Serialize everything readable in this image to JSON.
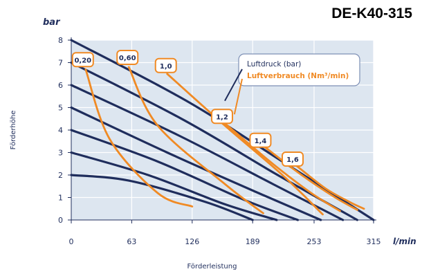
{
  "product_code": "DE-K40-315",
  "chart_data": {
    "type": "line",
    "y_unit": "bar",
    "x_unit": "l/min",
    "ylabel": "Förderhöhe",
    "xlabel": "Förderleistung",
    "xticks": [
      "0",
      "63",
      "126",
      "189",
      "253",
      "315"
    ],
    "yticks": [
      "0",
      "1",
      "2",
      "3",
      "4",
      "5",
      "6",
      "7",
      "8"
    ],
    "xlim": [
      0,
      315
    ],
    "ylim": [
      0,
      8
    ],
    "legend": {
      "position": "top-right",
      "pressure_label": "Luftdruck (bar)",
      "consumption_label": "Luftverbrauch (Nm³/min)"
    },
    "colors": {
      "plot_bg": "#dde6f0",
      "pressure": "#1f2d5c",
      "consumption": "#f08a24"
    },
    "pressure_curves": [
      {
        "points": [
          [
            0,
            8.0
          ],
          [
            120,
            5.3
          ],
          [
            220,
            2.6
          ],
          [
            315,
            0
          ]
        ]
      },
      {
        "points": [
          [
            0,
            7.0
          ],
          [
            115,
            4.5
          ],
          [
            215,
            2.0
          ],
          [
            298,
            0
          ]
        ]
      },
      {
        "points": [
          [
            0,
            6.0
          ],
          [
            110,
            3.8
          ],
          [
            210,
            1.6
          ],
          [
            283,
            0
          ]
        ]
      },
      {
        "points": [
          [
            0,
            5.0
          ],
          [
            100,
            3.0
          ],
          [
            195,
            1.2
          ],
          [
            260,
            0
          ]
        ]
      },
      {
        "points": [
          [
            0,
            4.0
          ],
          [
            90,
            2.6
          ],
          [
            180,
            0.9
          ],
          [
            236,
            0
          ]
        ]
      },
      {
        "points": [
          [
            0,
            3.0
          ],
          [
            80,
            2.0
          ],
          [
            160,
            0.7
          ],
          [
            214,
            0
          ]
        ]
      },
      {
        "points": [
          [
            0,
            2.0
          ],
          [
            60,
            1.75
          ],
          [
            140,
            0.8
          ],
          [
            189,
            0
          ]
        ]
      }
    ],
    "consumption_curves": [
      {
        "label": "0,20",
        "points": [
          [
            15,
            6.7
          ],
          [
            40,
            3.6
          ],
          [
            90,
            1.2
          ],
          [
            126,
            0.6
          ]
        ]
      },
      {
        "label": "0,60",
        "points": [
          [
            60,
            6.8
          ],
          [
            90,
            4.2
          ],
          [
            160,
            1.6
          ],
          [
            200,
            0.3
          ]
        ]
      },
      {
        "label": "1,0",
        "points": [
          [
            100,
            6.5
          ],
          [
            160,
            4.2
          ],
          [
            220,
            2.0
          ],
          [
            262,
            0.25
          ]
        ]
      },
      {
        "label": "1,2",
        "points": [
          [
            160,
            4.3
          ],
          [
            210,
            2.5
          ],
          [
            250,
            1.2
          ],
          [
            280,
            0.4
          ]
        ]
      },
      {
        "label": "1,4",
        "points": [
          [
            200,
            3.3
          ],
          [
            240,
            2.0
          ],
          [
            275,
            1.0
          ],
          [
            298,
            0.45
          ]
        ]
      },
      {
        "label": "1,6",
        "points": [
          [
            235,
            2.4
          ],
          [
            265,
            1.4
          ],
          [
            290,
            0.8
          ],
          [
            305,
            0.5
          ]
        ]
      }
    ]
  }
}
